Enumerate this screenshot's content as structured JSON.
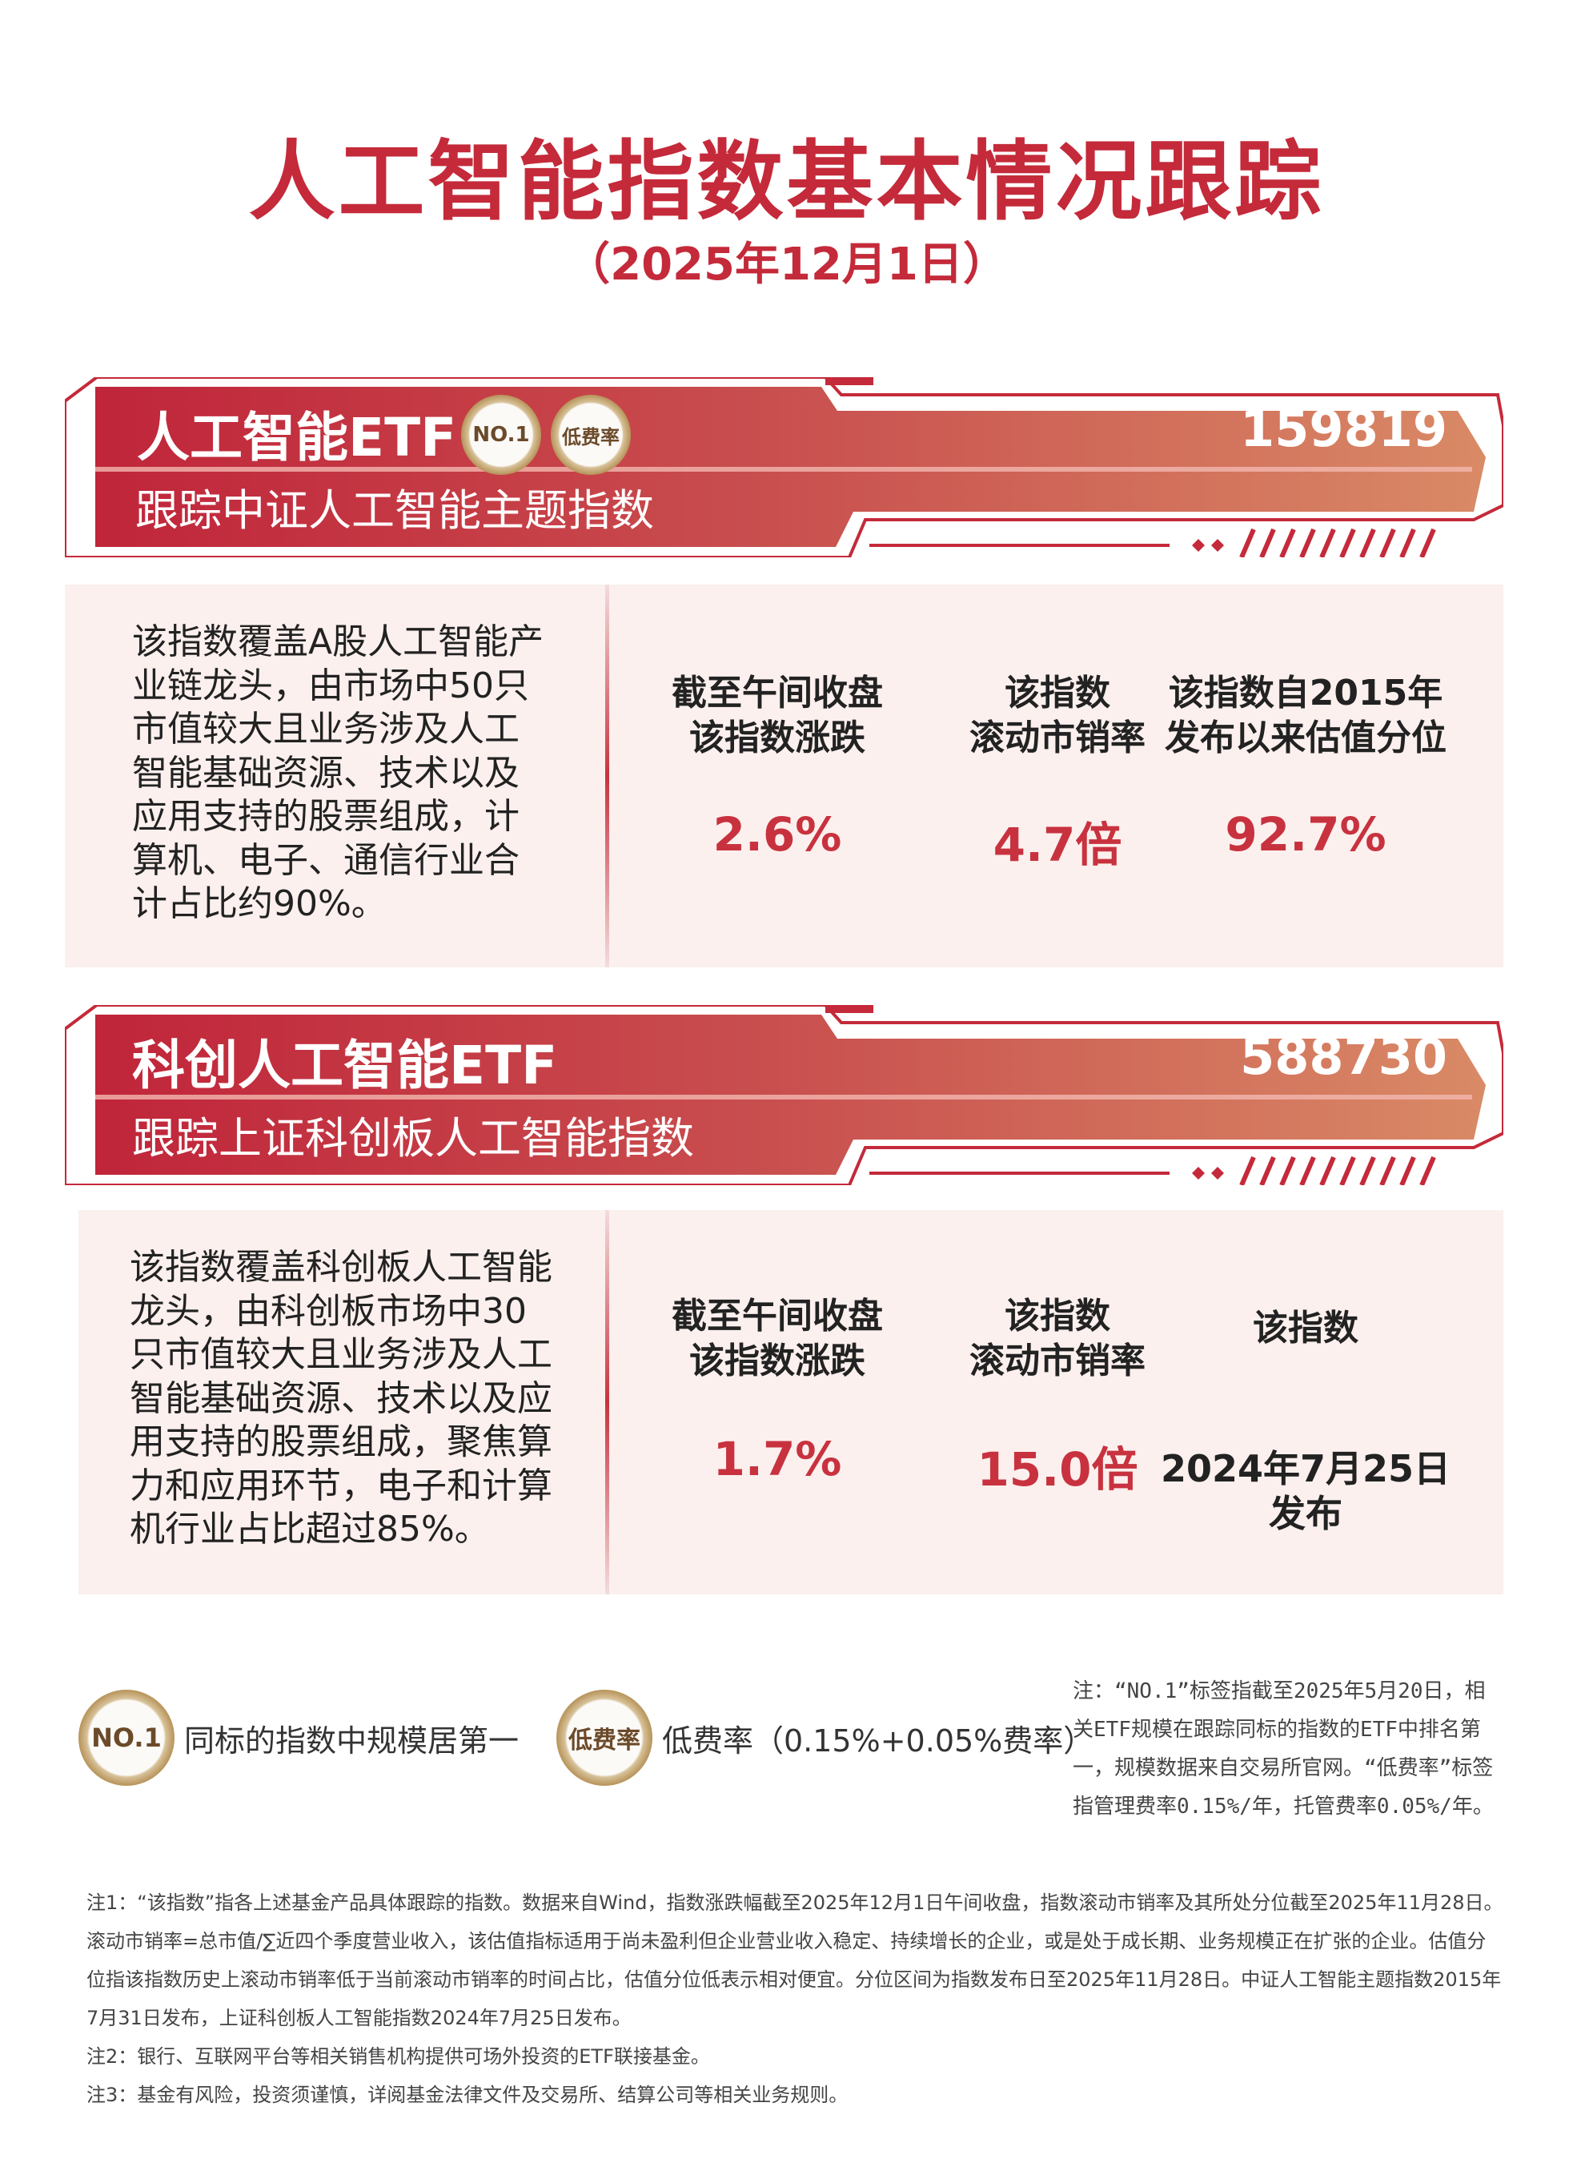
{
  "header": {
    "title": "人工智能指数基本情况跟踪",
    "date": "（2025年12月1日）"
  },
  "colors": {
    "accent": "#c42a3a",
    "value_red": "#c8323f",
    "panel_bg": "#fbf0ee",
    "banner_start": "#c0253a",
    "banner_end": "#d98a66"
  },
  "funds": [
    {
      "name": "人工智能ETF",
      "code": "159819",
      "tracks": "跟踪中证人工智能主题指数",
      "badges": [
        "NO.1",
        "低费率"
      ],
      "description": "该指数覆盖A股人工智能产业链龙头，由市场中50只市值较大且业务涉及人工智能基础资源、技术以及应用支持的股票组成，计算机、电子、通信行业合计占比约90%。",
      "desc_lines": [
        "该指数覆盖A股人工智能产",
        "业链龙头，由市场中50只",
        "市值较大且业务涉及人工",
        "智能基础资源、技术以及",
        "应用支持的股票组成，计",
        "算机、电子、通信行业合",
        "计占比约90%。"
      ],
      "stats": [
        {
          "label1": "截至午间收盘",
          "label2": "该指数涨跌",
          "value": "2.6%"
        },
        {
          "label1": "该指数",
          "label2": "滚动市销率",
          "value": "4.7倍"
        },
        {
          "label1": "该指数自2015年",
          "label2": "发布以来估值分位",
          "value": "92.7%"
        }
      ]
    },
    {
      "name": "科创人工智能ETF",
      "code": "588730",
      "tracks": "跟踪上证科创板人工智能指数",
      "desc_lines": [
        "该指数覆盖科创板人工智能",
        "龙头，由科创板市场中30",
        "只市值较大且业务涉及人工",
        "智能基础资源、技术以及应",
        "用支持的股票组成，聚焦算",
        "力和应用环节，电子和计算",
        "机行业占比超过85%。"
      ],
      "stats": [
        {
          "label1": "截至午间收盘",
          "label2": "该指数涨跌",
          "value": "1.7%"
        },
        {
          "label1": "该指数",
          "label2": "滚动市销率",
          "value": "15.0倍"
        },
        {
          "label1": "该指数",
          "value1": "2024年7月25日",
          "value2": "发布"
        }
      ]
    }
  ],
  "legend": {
    "no1_badge": "NO.1",
    "no1_text": "同标的指数中规模居第一",
    "fee_badge": "低费率",
    "fee_text": "低费率（0.15%+0.05%费率）"
  },
  "side_note": "注：“NO.1”标签指截至2025年5月20日，相关ETF规模在跟踪同标的指数的ETF中排名第一，规模数据来自交易所官网。“低费率”标签指管理费率0.15%/年，托管费率0.05%/年。",
  "notes": [
    "注1：“该指数”指各上述基金产品具体跟踪的指数。数据来自Wind，指数涨跌幅截至2025年12月1日午间收盘，指数滚动市销率及其所处分位截至2025年11月28日。滚动市销率=总市值/∑近四个季度营业收入，该估值指标适用于尚未盈利但企业营业收入稳定、持续增长的企业，或是处于成长期、业务规模正在扩张的企业。估值分位指该指数历史上滚动市销率低于当前滚动市销率的时间占比，估值分位低表示相对便宜。分位区间为指数发布日至2025年11月28日。中证人工智能主题指数2015年7月31日发布，上证科创板人工智能指数2024年7月25日发布。",
    "注2：银行、互联网平台等相关销售机构提供可场外投资的ETF联接基金。",
    "注3：基金有风险，投资须谨慎，详阅基金法律文件及交易所、结算公司等相关业务规则。"
  ]
}
